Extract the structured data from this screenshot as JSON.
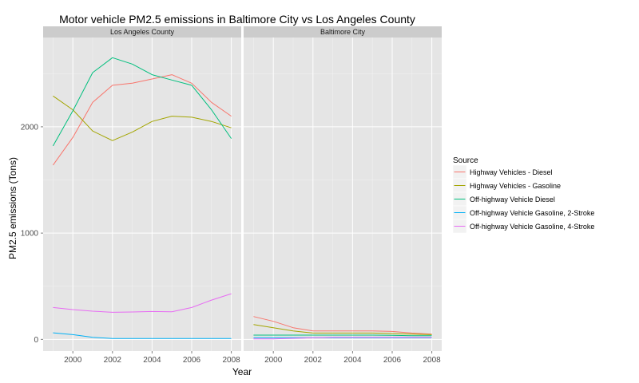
{
  "chart_data": {
    "type": "line",
    "title": "Motor vehicle PM2.5 emissions in Baltimore City vs Los Angeles County",
    "xlabel": "Year",
    "ylabel": "PM2.5 emissions (Tons)",
    "xlim": [
      1998.5,
      2008.5
    ],
    "ylim": [
      -110,
      2840
    ],
    "x_ticks": [
      2000,
      2002,
      2004,
      2006,
      2008
    ],
    "y_ticks": [
      0,
      1000,
      2000
    ],
    "grid": true,
    "legend": {
      "title": "Source",
      "position": "right"
    },
    "series_meta": [
      {
        "name": "Highway Vehicles - Diesel",
        "color": "#F8766D"
      },
      {
        "name": "Highway Vehicles - Gasoline",
        "color": "#A3A500"
      },
      {
        "name": "Off-highway Vehicle Diesel",
        "color": "#00BF7D"
      },
      {
        "name": "Off-highway Vehicle Gasoline, 2-Stroke",
        "color": "#00B0F6"
      },
      {
        "name": "Off-highway Vehicle Gasoline, 4-Stroke",
        "color": "#E76BF3"
      }
    ],
    "facets": [
      {
        "label": "Los Angeles County",
        "series": [
          {
            "name": "Highway Vehicles - Diesel",
            "x": [
              1999,
              2000,
              2001,
              2002,
              2003,
              2004,
              2005,
              2006,
              2007,
              2008
            ],
            "values": [
              1640,
              1900,
              2230,
              2390,
              2410,
              2450,
              2490,
              2410,
              2230,
              2100
            ]
          },
          {
            "name": "Highway Vehicles - Gasoline",
            "x": [
              1999,
              2000,
              2001,
              2002,
              2003,
              2004,
              2005,
              2006,
              2007,
              2008
            ],
            "values": [
              2290,
              2160,
              1960,
              1870,
              1950,
              2050,
              2100,
              2090,
              2050,
              1990
            ]
          },
          {
            "name": "Off-highway Vehicle Diesel",
            "x": [
              1999,
              2000,
              2001,
              2002,
              2003,
              2004,
              2005,
              2006,
              2007,
              2008
            ],
            "values": [
              1820,
              2150,
              2510,
              2650,
              2590,
              2490,
              2440,
              2390,
              2160,
              1890
            ]
          },
          {
            "name": "Off-highway Vehicle Gasoline, 2-Stroke",
            "x": [
              1999,
              2000,
              2001,
              2002,
              2003,
              2004,
              2005,
              2006,
              2007,
              2008
            ],
            "values": [
              62,
              45,
              20,
              8,
              8,
              8,
              8,
              8,
              8,
              8
            ]
          },
          {
            "name": "Off-highway Vehicle Gasoline, 4-Stroke",
            "x": [
              1999,
              2000,
              2001,
              2002,
              2003,
              2004,
              2005,
              2006,
              2007,
              2008
            ],
            "values": [
              300,
              280,
              265,
              255,
              258,
              262,
              260,
              300,
              370,
              430
            ]
          }
        ]
      },
      {
        "label": "Baltimore City",
        "series": [
          {
            "name": "Highway Vehicles - Diesel",
            "x": [
              1999,
              2000,
              2001,
              2002,
              2003,
              2004,
              2005,
              2006,
              2007,
              2008
            ],
            "values": [
              215,
              170,
              110,
              80,
              80,
              80,
              80,
              75,
              60,
              50
            ]
          },
          {
            "name": "Highway Vehicles - Gasoline",
            "x": [
              1999,
              2000,
              2001,
              2002,
              2003,
              2004,
              2005,
              2006,
              2007,
              2008
            ],
            "values": [
              140,
              110,
              80,
              60,
              60,
              60,
              60,
              55,
              50,
              45
            ]
          },
          {
            "name": "Off-highway Vehicle Diesel",
            "x": [
              1999,
              2000,
              2001,
              2002,
              2003,
              2004,
              2005,
              2006,
              2007,
              2008
            ],
            "values": [
              40,
              40,
              40,
              40,
              40,
              40,
              40,
              38,
              35,
              35
            ]
          },
          {
            "name": "Off-highway Vehicle Gasoline, 2-Stroke",
            "x": [
              1999,
              2000,
              2001,
              2002,
              2003,
              2004,
              2005,
              2006,
              2007,
              2008
            ],
            "values": [
              15,
              15,
              15,
              15,
              15,
              15,
              15,
              15,
              15,
              15
            ]
          },
          {
            "name": "Off-highway Vehicle Gasoline, 4-Stroke",
            "x": [
              1999,
              2000,
              2001,
              2002,
              2003,
              2004,
              2005,
              2006,
              2007,
              2008
            ],
            "values": [
              5,
              5,
              10,
              15,
              20,
              20,
              20,
              20,
              20,
              20
            ]
          }
        ]
      }
    ]
  }
}
